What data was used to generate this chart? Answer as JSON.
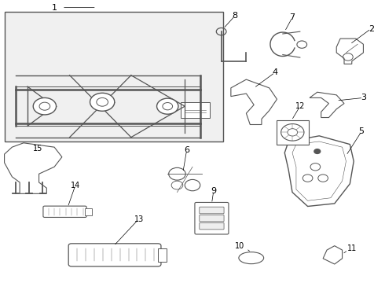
{
  "bg_color": "#ffffff",
  "line_color": "#555555",
  "label_color": "#000000",
  "fig_width": 4.9,
  "fig_height": 3.6,
  "dpi": 100
}
